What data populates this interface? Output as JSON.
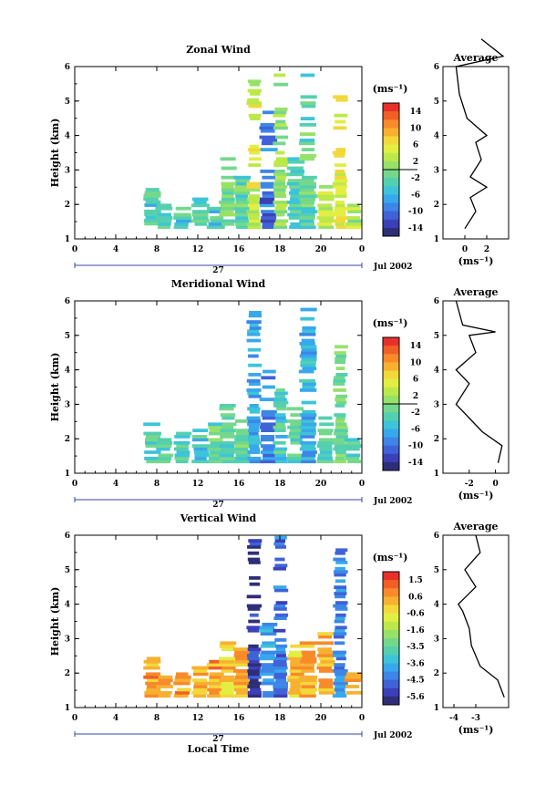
{
  "chart_data": [
    {
      "type": "heatmap",
      "title": "Zonal Wind",
      "ylabel": "Height (km)",
      "x_ticks": [
        "0",
        "4",
        "8",
        "12",
        "16",
        "18",
        "20",
        "0"
      ],
      "x_date_label": "27",
      "date_label": "Jul 2002",
      "xlim": [
        0,
        24
      ],
      "ylim": [
        1,
        6
      ],
      "y_ticks": [
        "1",
        "2",
        "3",
        "4",
        "5",
        "6"
      ],
      "colorbar": {
        "unit": "(ms⁻¹)",
        "labels": [
          "14",
          "10",
          "6",
          "2",
          "-2",
          "-6",
          "-10",
          "-14"
        ],
        "range": [
          -16,
          16
        ],
        "zero_line": 2
      },
      "columns": [
        {
          "t": 6.5,
          "b": 1.4,
          "h": 2.5,
          "v": -4
        },
        {
          "t": 7.5,
          "b": 1.3,
          "h": 2.0,
          "v": -3
        },
        {
          "t": 9.0,
          "b": 1.3,
          "h": 1.9,
          "v": -4
        },
        {
          "t": 10.5,
          "b": 1.3,
          "h": 2.2,
          "v": -3
        },
        {
          "t": 11.8,
          "b": 1.3,
          "h": 2.0,
          "v": -4
        },
        {
          "t": 12.8,
          "b": 1.3,
          "h": 3.4,
          "v": -1
        },
        {
          "t": 14.0,
          "b": 1.3,
          "h": 3.0,
          "v": -2
        },
        {
          "t": 15.0,
          "b": 1.3,
          "h": 5.8,
          "v": 4
        },
        {
          "t": 16.2,
          "b": 1.3,
          "h": 5.0,
          "v": -10
        },
        {
          "t": 17.2,
          "b": 1.3,
          "h": 5.8,
          "v": 1
        },
        {
          "t": 18.5,
          "b": 1.3,
          "h": 3.5,
          "v": -3
        },
        {
          "t": 19.5,
          "b": 1.3,
          "h": 5.8,
          "v": -2
        },
        {
          "t": 21.0,
          "b": 1.3,
          "h": 2.6,
          "v": 3
        },
        {
          "t": 22.2,
          "b": 1.3,
          "h": 5.3,
          "v": 5
        },
        {
          "t": 23.3,
          "b": 1.3,
          "h": 2.0,
          "v": 2
        }
      ],
      "profile": {
        "title": "Average",
        "xlabel": "(ms⁻¹)",
        "x_ticks": [
          "0",
          "2"
        ],
        "xlim": [
          -2,
          4
        ],
        "points": [
          [
            0,
            1.3
          ],
          [
            1,
            1.8
          ],
          [
            0.5,
            2.2
          ],
          [
            2,
            2.5
          ],
          [
            0.5,
            2.8
          ],
          [
            1.5,
            3.3
          ],
          [
            1,
            3.8
          ],
          [
            2,
            4.0
          ],
          [
            0.2,
            4.5
          ],
          [
            -0.5,
            5.2
          ],
          [
            -0.8,
            6.0
          ],
          [
            3.5,
            6.3
          ],
          [
            1.5,
            6.8
          ]
        ]
      }
    },
    {
      "type": "heatmap",
      "title": "Meridional Wind",
      "ylabel": "Height (km)",
      "x_ticks": [
        "0",
        "4",
        "8",
        "12",
        "16",
        "18",
        "20",
        "0"
      ],
      "x_date_label": "27",
      "date_label": "Jul 2002",
      "xlim": [
        0,
        24
      ],
      "ylim": [
        1,
        6
      ],
      "y_ticks": [
        "1",
        "2",
        "3",
        "4",
        "5",
        "6"
      ],
      "colorbar": {
        "unit": "(ms⁻¹)",
        "labels": [
          "14",
          "10",
          "6",
          "2",
          "-2",
          "-6",
          "-10",
          "-14"
        ],
        "range": [
          -16,
          16
        ],
        "zero_line": 2
      },
      "columns": [
        {
          "t": 6.5,
          "b": 1.3,
          "h": 2.5,
          "v": -3
        },
        {
          "t": 7.5,
          "b": 1.3,
          "h": 2.0,
          "v": -2
        },
        {
          "t": 9.0,
          "b": 1.3,
          "h": 2.2,
          "v": -3
        },
        {
          "t": 10.5,
          "b": 1.3,
          "h": 2.3,
          "v": -4
        },
        {
          "t": 11.8,
          "b": 1.3,
          "h": 2.5,
          "v": -2
        },
        {
          "t": 12.8,
          "b": 1.3,
          "h": 3.0,
          "v": -3
        },
        {
          "t": 14.0,
          "b": 1.3,
          "h": 2.6,
          "v": -2
        },
        {
          "t": 15.0,
          "b": 1.3,
          "h": 5.8,
          "v": -7
        },
        {
          "t": 16.2,
          "b": 1.3,
          "h": 4.0,
          "v": -9
        },
        {
          "t": 17.2,
          "b": 1.3,
          "h": 3.5,
          "v": -4
        },
        {
          "t": 18.5,
          "b": 1.3,
          "h": 3.0,
          "v": -2
        },
        {
          "t": 19.5,
          "b": 1.3,
          "h": 5.8,
          "v": -6
        },
        {
          "t": 21.0,
          "b": 1.3,
          "h": 2.7,
          "v": -3
        },
        {
          "t": 22.2,
          "b": 1.3,
          "h": 4.8,
          "v": -1
        },
        {
          "t": 23.3,
          "b": 1.3,
          "h": 2.0,
          "v": -3
        }
      ],
      "profile": {
        "title": "Average",
        "xlabel": "(ms⁻¹)",
        "x_ticks": [
          "-2",
          "0"
        ],
        "xlim": [
          -4,
          1
        ],
        "points": [
          [
            0.2,
            1.3
          ],
          [
            0.5,
            1.8
          ],
          [
            -1,
            2.2
          ],
          [
            -2,
            2.6
          ],
          [
            -3,
            3.0
          ],
          [
            -2,
            3.6
          ],
          [
            -3,
            4.0
          ],
          [
            -1.5,
            4.5
          ],
          [
            -2,
            5.0
          ],
          [
            0,
            5.1
          ],
          [
            -2.5,
            5.3
          ],
          [
            -3,
            6.0
          ]
        ]
      }
    },
    {
      "type": "heatmap",
      "title": "Vertical Wind",
      "ylabel": "Height (km)",
      "xlabel": "Local Time",
      "x_ticks": [
        "0",
        "4",
        "8",
        "12",
        "16",
        "18",
        "20",
        "0"
      ],
      "x_date_label": "27",
      "date_label": "Jul 2002",
      "xlim": [
        0,
        24
      ],
      "ylim": [
        1,
        6
      ],
      "y_ticks": [
        "1",
        "2",
        "3",
        "4",
        "5",
        "6"
      ],
      "colorbar": {
        "unit": "(ms⁻¹)",
        "labels": [
          "1.5",
          "0.6",
          "-0.6",
          "-1.6",
          "-3.5",
          "-3.6",
          "-4.5",
          "-5.6"
        ],
        "range": [
          -6.3,
          2.0
        ],
        "zero_line": null
      },
      "columns": [
        {
          "t": 6.5,
          "b": 1.3,
          "h": 2.5,
          "v": 0.4
        },
        {
          "t": 7.5,
          "b": 1.3,
          "h": 2.0,
          "v": 0.2
        },
        {
          "t": 9.0,
          "b": 1.3,
          "h": 2.0,
          "v": 0.3
        },
        {
          "t": 10.5,
          "b": 1.3,
          "h": 2.2,
          "v": 0.1
        },
        {
          "t": 11.8,
          "b": 1.3,
          "h": 2.4,
          "v": 0.5
        },
        {
          "t": 12.8,
          "b": 1.3,
          "h": 3.0,
          "v": -0.2
        },
        {
          "t": 14.0,
          "b": 1.3,
          "h": 2.8,
          "v": 0.2
        },
        {
          "t": 15.0,
          "b": 1.3,
          "h": 6.0,
          "v": -5.8
        },
        {
          "t": 16.2,
          "b": 1.3,
          "h": 3.5,
          "v": -4.0
        },
        {
          "t": 17.2,
          "b": 1.3,
          "h": 6.0,
          "v": -4.8
        },
        {
          "t": 18.5,
          "b": 1.3,
          "h": 2.8,
          "v": 0.0
        },
        {
          "t": 19.5,
          "b": 1.3,
          "h": 3.0,
          "v": 0.3
        },
        {
          "t": 21.0,
          "b": 1.3,
          "h": 3.2,
          "v": 0.2
        },
        {
          "t": 22.2,
          "b": 1.3,
          "h": 5.8,
          "v": -4.5
        },
        {
          "t": 23.3,
          "b": 1.3,
          "h": 2.0,
          "v": 0.4
        }
      ],
      "profile": {
        "title": "Average",
        "xlabel": "(ms⁻¹)",
        "x_ticks": [
          "-4",
          "-3"
        ],
        "xlim": [
          -4.5,
          -1.5
        ],
        "points": [
          [
            -1.7,
            1.3
          ],
          [
            -2.0,
            1.8
          ],
          [
            -2.8,
            2.2
          ],
          [
            -3.2,
            2.8
          ],
          [
            -3.3,
            3.3
          ],
          [
            -3.6,
            3.8
          ],
          [
            -3.8,
            4.0
          ],
          [
            -3.0,
            4.5
          ],
          [
            -3.5,
            5.0
          ],
          [
            -2.8,
            5.5
          ],
          [
            -3.0,
            6.0
          ]
        ]
      }
    }
  ]
}
